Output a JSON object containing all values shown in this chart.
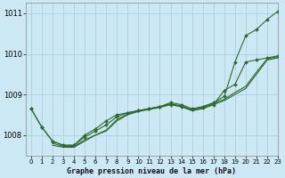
{
  "title": "Graphe pression niveau de la mer (hPa)",
  "bg_color": "#cce8f4",
  "grid_color": "#aaccdd",
  "line_color": "#2d6a2d",
  "xlim": [
    -0.5,
    23
  ],
  "ylim": [
    1007.5,
    1011.25
  ],
  "yticks": [
    1008,
    1009,
    1010,
    1011
  ],
  "xticks": [
    0,
    1,
    2,
    3,
    4,
    5,
    6,
    7,
    8,
    9,
    10,
    11,
    12,
    13,
    14,
    15,
    16,
    17,
    18,
    19,
    20,
    21,
    22,
    23
  ],
  "series": [
    {
      "x": [
        0,
        1,
        2,
        3,
        4,
        5,
        6,
        7,
        8,
        9,
        10,
        11,
        12,
        13,
        14,
        15,
        16,
        17,
        18,
        19,
        20,
        21,
        22,
        23
      ],
      "y": [
        1008.65,
        1008.2,
        1007.85,
        1007.75,
        1007.75,
        1008.0,
        1008.15,
        1008.35,
        1008.5,
        1008.55,
        1008.6,
        1008.65,
        1008.7,
        1008.8,
        1008.75,
        1008.65,
        1008.7,
        1008.8,
        1008.95,
        1009.8,
        1010.45,
        1010.6,
        1010.85,
        1011.05
      ],
      "marker": true
    },
    {
      "x": [
        0,
        1,
        2,
        3,
        4,
        5,
        6,
        7,
        8,
        9,
        10,
        11,
        12,
        13,
        14,
        15,
        16,
        17,
        18,
        19,
        20,
        21,
        22,
        23
      ],
      "y": [
        1008.65,
        1008.2,
        1007.85,
        1007.75,
        1007.75,
        1007.95,
        1008.1,
        1008.25,
        1008.45,
        1008.55,
        1008.6,
        1008.65,
        1008.7,
        1008.75,
        1008.7,
        1008.62,
        1008.68,
        1008.75,
        1009.1,
        1009.25,
        1009.8,
        1009.85,
        1009.9,
        1009.95
      ],
      "marker": true
    },
    {
      "x": [
        2,
        3,
        4,
        5,
        6,
        7,
        8,
        9,
        10,
        11,
        12,
        13,
        14,
        15,
        16,
        17,
        18,
        19,
        20,
        21,
        22,
        23
      ],
      "y": [
        1007.75,
        1007.7,
        1007.7,
        1007.85,
        1008.0,
        1008.1,
        1008.35,
        1008.5,
        1008.58,
        1008.63,
        1008.68,
        1008.75,
        1008.7,
        1008.6,
        1008.65,
        1008.75,
        1008.85,
        1009.0,
        1009.15,
        1009.5,
        1009.85,
        1009.9
      ],
      "marker": false
    },
    {
      "x": [
        2,
        3,
        4,
        5,
        6,
        7,
        8,
        9,
        10,
        11,
        12,
        13,
        14,
        15,
        16,
        17,
        18,
        19,
        20,
        21,
        22,
        23
      ],
      "y": [
        1007.8,
        1007.72,
        1007.72,
        1007.88,
        1008.0,
        1008.12,
        1008.38,
        1008.52,
        1008.6,
        1008.65,
        1008.7,
        1008.77,
        1008.72,
        1008.62,
        1008.68,
        1008.78,
        1008.88,
        1009.05,
        1009.2,
        1009.55,
        1009.88,
        1009.93
      ],
      "marker": false
    }
  ]
}
